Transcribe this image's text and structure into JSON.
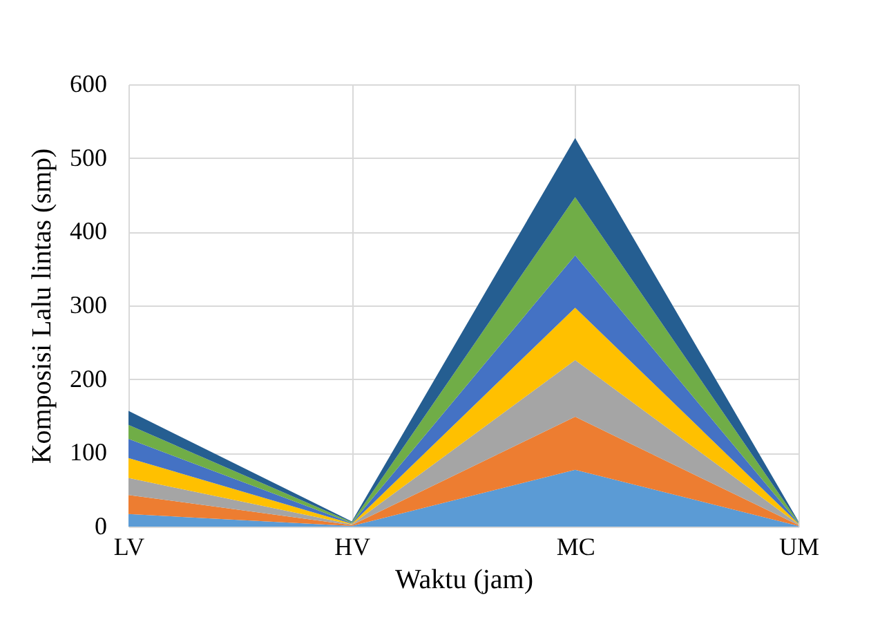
{
  "chart_data": {
    "type": "area",
    "stacked": true,
    "xlabel": "Waktu (jam)",
    "ylabel": "Komposisi Lalu lintas (smp)",
    "categories": [
      "LV",
      "HV",
      "MC",
      "UM"
    ],
    "ylim": [
      0,
      600
    ],
    "yticks": [
      0,
      100,
      200,
      300,
      400,
      500,
      600
    ],
    "grid": true,
    "legend": false,
    "series": [
      {
        "color": "#5b9bd5",
        "values": [
          17,
          1,
          77,
          1
        ]
      },
      {
        "color": "#ed7d31",
        "values": [
          26,
          1,
          72,
          1
        ]
      },
      {
        "color": "#a5a5a5",
        "values": [
          23,
          1,
          77,
          1
        ]
      },
      {
        "color": "#ffc000",
        "values": [
          27,
          1,
          71,
          1
        ]
      },
      {
        "color": "#4472c4",
        "values": [
          26,
          1,
          71,
          1
        ]
      },
      {
        "color": "#70ad47",
        "values": [
          19,
          1,
          79,
          1
        ]
      },
      {
        "color": "#255e91",
        "values": [
          19,
          1,
          80,
          1
        ]
      }
    ]
  }
}
